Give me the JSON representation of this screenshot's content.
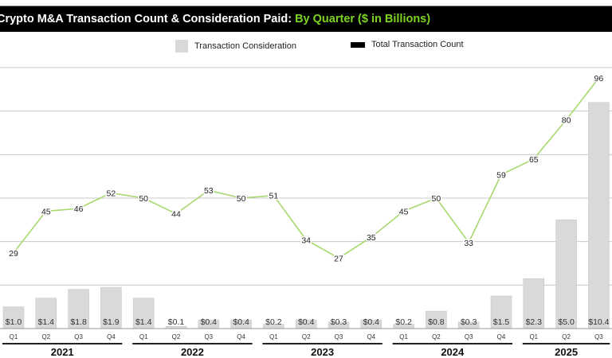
{
  "chart_data": {
    "type": "bar+line",
    "title": "Crypto M&A Transaction Count & Consideration Paid:",
    "title_highlight": "By Quarter ($ in Billions)",
    "colors": {
      "title_bg": "#000000",
      "title_text": "#ffffff",
      "highlight": "#7ed321",
      "bars": "#d9d9d9",
      "line": "#a8d86e",
      "grid": "#c8c8c8"
    },
    "legend": [
      {
        "name": "Transaction Consideration",
        "color": "#d9d9d9"
      },
      {
        "name": "Total Transaction Count",
        "color": "#000000"
      }
    ],
    "legend_placement": "top-center",
    "grid": true,
    "quarters": [
      "Q1",
      "Q2",
      "Q3",
      "Q4",
      "Q1",
      "Q2",
      "Q3",
      "Q4",
      "Q1",
      "Q2",
      "Q3",
      "Q4",
      "Q1",
      "Q2",
      "Q3",
      "Q4",
      "Q1",
      "Q2",
      "Q3"
    ],
    "years": [
      {
        "label": "2021",
        "from": 0,
        "to": 3
      },
      {
        "label": "2022",
        "from": 4,
        "to": 7
      },
      {
        "label": "2023",
        "from": 8,
        "to": 11
      },
      {
        "label": "2024",
        "from": 12,
        "to": 15
      },
      {
        "label": "2025",
        "from": 16,
        "to": 18
      }
    ],
    "series": [
      {
        "name": "Transaction Consideration",
        "type": "bar",
        "unit": "$B",
        "values": [
          1.0,
          1.4,
          1.8,
          1.9,
          1.4,
          0.1,
          0.4,
          0.4,
          0.2,
          0.4,
          0.3,
          0.4,
          0.2,
          0.8,
          0.3,
          1.5,
          2.3,
          5.0,
          10.4
        ],
        "labels": [
          "$1.0",
          "$1.4",
          "$1.8",
          "$1.9",
          "$1.4",
          "$0.1",
          "$0.4",
          "$0.4",
          "$0.2",
          "$0.4",
          "$0.3",
          "$0.4",
          "$0.2",
          "$0.8",
          "$0.3",
          "$1.5",
          "$2.3",
          "$5.0",
          "$10.4"
        ]
      },
      {
        "name": "Total Transaction Count",
        "type": "line",
        "values": [
          29,
          45,
          46,
          52,
          50,
          44,
          53,
          50,
          51,
          34,
          27,
          35,
          45,
          50,
          33,
          59,
          65,
          80,
          96
        ]
      }
    ],
    "bar_axis_range": [
      0,
      12
    ],
    "count_axis_range": [
      0,
      100
    ]
  }
}
